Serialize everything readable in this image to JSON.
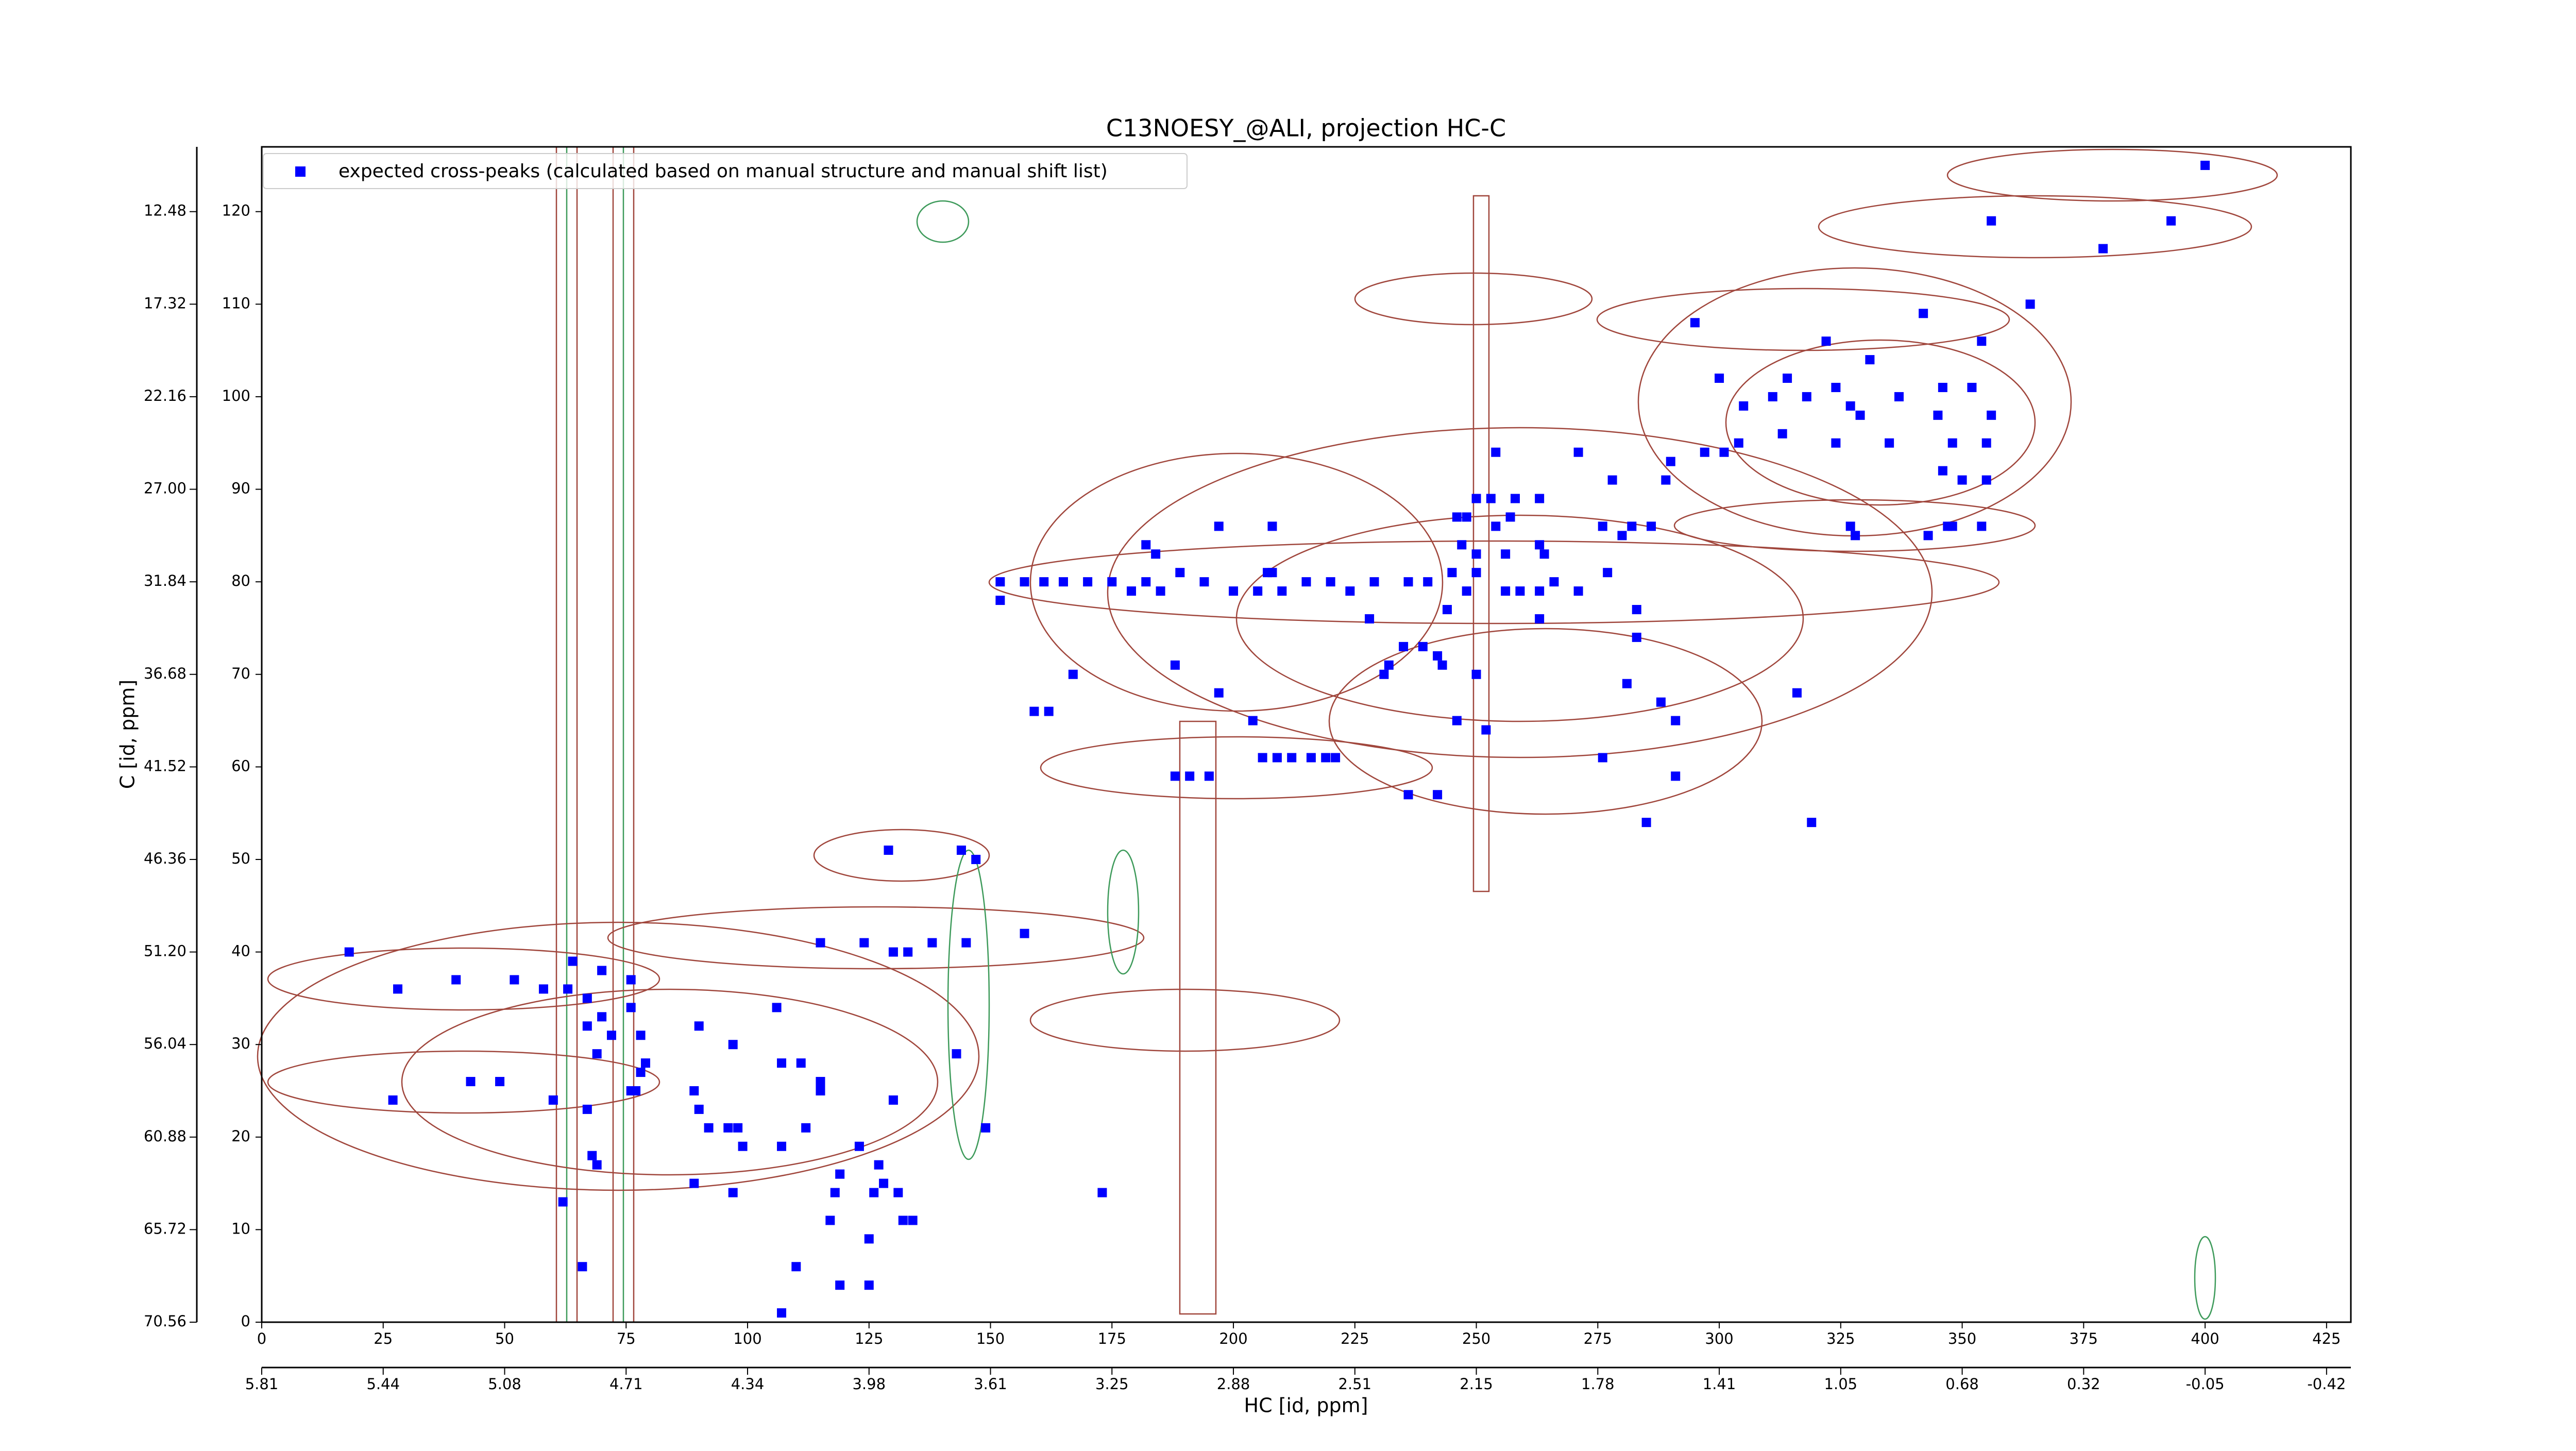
{
  "chart_data": {
    "type": "scatter",
    "title": "C13NOESY_@ALI, projection HC-C",
    "xlabel": "HC [id, ppm]",
    "ylabel": "C [id, ppm]",
    "xlim": [
      0,
      430
    ],
    "ylim": [
      0,
      127
    ],
    "xticks": [
      0,
      25,
      50,
      75,
      100,
      125,
      150,
      175,
      200,
      225,
      250,
      275,
      300,
      325,
      350,
      375,
      400,
      425
    ],
    "yticks": [
      0,
      10,
      20,
      30,
      40,
      50,
      60,
      70,
      80,
      90,
      100,
      110,
      120
    ],
    "x_ppm_ticks": [
      {
        "value": 0,
        "label": "5.81"
      },
      {
        "value": 25,
        "label": "5.44"
      },
      {
        "value": 50,
        "label": "5.08"
      },
      {
        "value": 75,
        "label": "4.71"
      },
      {
        "value": 100,
        "label": "4.34"
      },
      {
        "value": 125,
        "label": "3.98"
      },
      {
        "value": 150,
        "label": "3.61"
      },
      {
        "value": 175,
        "label": "3.25"
      },
      {
        "value": 200,
        "label": "2.88"
      },
      {
        "value": 225,
        "label": "2.51"
      },
      {
        "value": 250,
        "label": "2.15"
      },
      {
        "value": 275,
        "label": "1.78"
      },
      {
        "value": 300,
        "label": "1.41"
      },
      {
        "value": 325,
        "label": "1.05"
      },
      {
        "value": 350,
        "label": "0.68"
      },
      {
        "value": 375,
        "label": "0.32"
      },
      {
        "value": 400,
        "label": "-0.05"
      },
      {
        "value": 425,
        "label": "-0.42"
      }
    ],
    "y_ppm_ticks": [
      {
        "value": 0,
        "label": "70.56"
      },
      {
        "value": 10,
        "label": "65.72"
      },
      {
        "value": 20,
        "label": "60.88"
      },
      {
        "value": 30,
        "label": "56.04"
      },
      {
        "value": 40,
        "label": "51.20"
      },
      {
        "value": 50,
        "label": "46.36"
      },
      {
        "value": 60,
        "label": "41.52"
      },
      {
        "value": 70,
        "label": "36.68"
      },
      {
        "value": 80,
        "label": "31.84"
      },
      {
        "value": 90,
        "label": "27.00"
      },
      {
        "value": 100,
        "label": "22.16"
      },
      {
        "value": 110,
        "label": "17.32"
      },
      {
        "value": 120,
        "label": "12.48"
      }
    ],
    "legend": "upper left",
    "series": [
      {
        "name": "expected cross-peaks (calculated based on manual structure and manual shift list)",
        "color": "#0000ff",
        "x": [
          400,
          356,
          393,
          379,
          364,
          342,
          295,
          322,
          354,
          331,
          314,
          300,
          324,
          305,
          311,
          318,
          327,
          337,
          346,
          352,
          356,
          345,
          329,
          304,
          301,
          297,
          290,
          313,
          324,
          335,
          348,
          355,
          254,
          271,
          289,
          278,
          346,
          350,
          355,
          250,
          253,
          258,
          263,
          246,
          248,
          254,
          257,
          286,
          282,
          280,
          276,
          197,
          208,
          327,
          328,
          343,
          347,
          348,
          354,
          182,
          184,
          247,
          250,
          256,
          263,
          264,
          152,
          157,
          161,
          165,
          170,
          175,
          179,
          182,
          185,
          189,
          194,
          200,
          205,
          207,
          208,
          210,
          215,
          220,
          224,
          229,
          236,
          240,
          245,
          248,
          250,
          256,
          259,
          263,
          266,
          271,
          277,
          152,
          228,
          244,
          263,
          283,
          283,
          235,
          239,
          242,
          243,
          232,
          231,
          250,
          188,
          167,
          197,
          281,
          288,
          316,
          291,
          159,
          162,
          204,
          246,
          252,
          276,
          291,
          206,
          209,
          212,
          216,
          219,
          221,
          188,
          191,
          195,
          236,
          242,
          285,
          319,
          129,
          144,
          147,
          115,
          124,
          130,
          133,
          138,
          145,
          157,
          18,
          28,
          40,
          52,
          58,
          64,
          70,
          63,
          67,
          76,
          70,
          67,
          72,
          78,
          76,
          90,
          106,
          97,
          69,
          79,
          78,
          77,
          76,
          107,
          111,
          115,
          115,
          130,
          143,
          27,
          43,
          49,
          60,
          67,
          89,
          90,
          96,
          98,
          92,
          112,
          99,
          107,
          123,
          149,
          68,
          69,
          127,
          89,
          97,
          119,
          126,
          131,
          118,
          128,
          173,
          62,
          117,
          132,
          134,
          125,
          66,
          110,
          119,
          125,
          107
        ],
        "y": [
          125,
          119,
          119,
          116,
          110,
          109,
          108,
          106,
          106,
          104,
          102,
          102,
          101,
          99,
          100,
          100,
          99,
          100,
          101,
          101,
          98,
          98,
          98,
          95,
          94,
          94,
          93,
          96,
          95,
          95,
          95,
          95,
          94,
          94,
          91,
          91,
          92,
          91,
          91,
          89,
          89,
          89,
          89,
          87,
          87,
          86,
          87,
          86,
          86,
          85,
          86,
          86,
          86,
          86,
          85,
          85,
          86,
          86,
          86,
          84,
          83,
          84,
          83,
          83,
          84,
          83,
          80,
          80,
          80,
          80,
          80,
          80,
          79,
          80,
          79,
          81,
          80,
          79,
          79,
          81,
          81,
          79,
          80,
          80,
          79,
          80,
          80,
          80,
          81,
          79,
          81,
          79,
          79,
          79,
          80,
          79,
          81,
          78,
          76,
          77,
          76,
          77,
          74,
          73,
          73,
          72,
          71,
          71,
          70,
          70,
          71,
          70,
          68,
          69,
          67,
          68,
          65,
          66,
          66,
          65,
          65,
          64,
          61,
          59,
          61,
          61,
          61,
          61,
          61,
          61,
          59,
          59,
          59,
          57,
          57,
          54,
          54,
          51,
          51,
          50,
          41,
          41,
          40,
          40,
          41,
          41,
          42,
          40,
          36,
          37,
          37,
          36,
          39,
          38,
          36,
          35,
          37,
          33,
          32,
          31,
          31,
          34,
          32,
          34,
          30,
          29,
          28,
          27,
          25,
          25,
          28,
          28,
          26,
          25,
          24,
          29,
          24,
          26,
          26,
          24,
          23,
          25,
          23,
          21,
          21,
          21,
          21,
          19,
          19,
          19,
          21,
          18,
          17,
          17,
          15,
          14,
          16,
          14,
          14,
          14,
          15,
          14,
          13,
          11,
          11,
          11,
          9,
          6,
          6,
          4,
          4,
          1
        ]
      }
    ]
  }
}
